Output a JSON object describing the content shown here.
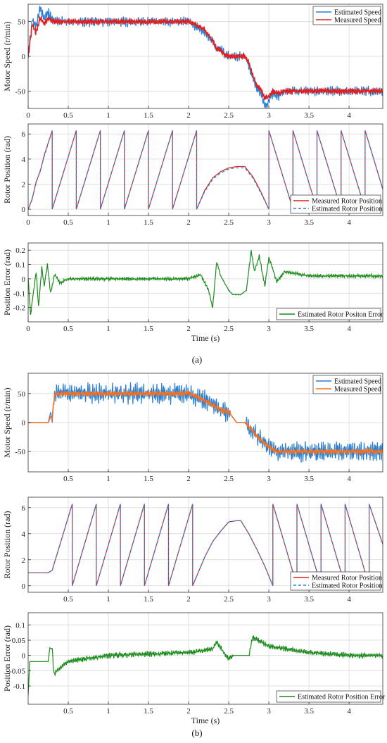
{
  "figure": {
    "panel_labels": [
      "(a)",
      "(b)"
    ]
  },
  "colors": {
    "estimated_speed": "#2a7fd4",
    "measured_speed_a": "#e02020",
    "measured_speed_b": "#f07020",
    "measured_position": "#e02020",
    "estimated_position": "#2a7fd4",
    "position_error": "#1a8a1a",
    "grid": "#d8d8d8"
  },
  "chart_data": [
    {
      "id": "a-speed",
      "type": "line",
      "panel": "(a)",
      "xlabel": "",
      "ylabel": "Motor Speed (r/min)",
      "xlim": [
        0,
        4.42
      ],
      "ylim": [
        -75,
        75
      ],
      "xticks": [
        0,
        0.5,
        1,
        1.5,
        2,
        2.5,
        3,
        3.5,
        4
      ],
      "xtick_labels": [
        "0",
        "0.5",
        "1",
        "1.5",
        "2",
        "2.5",
        "3",
        "3.5",
        "4"
      ],
      "yticks": [
        -50,
        0,
        50
      ],
      "ytick_labels": [
        "-50",
        "0",
        "50"
      ],
      "grid": true,
      "legend": "top-right",
      "series": [
        {
          "name": "Estimated Speed",
          "color": "#2a7fd4",
          "x": [
            0,
            0.05,
            0.1,
            0.15,
            0.2,
            0.25,
            0.3,
            0.4,
            0.5,
            0.75,
            1,
            1.5,
            2,
            2.1,
            2.2,
            2.3,
            2.35,
            2.4,
            2.45,
            2.5,
            2.6,
            2.7,
            2.75,
            2.8,
            2.85,
            2.9,
            2.95,
            3,
            3.05,
            3.1,
            3.2,
            3.5,
            4,
            4.42
          ],
          "y": [
            0,
            52,
            42,
            68,
            55,
            63,
            52,
            50,
            50,
            50,
            50,
            50,
            50,
            42,
            35,
            22,
            10,
            12,
            2,
            0,
            0,
            0,
            -12,
            -32,
            -45,
            -52,
            -72,
            -65,
            -52,
            -58,
            -50,
            -50,
            -50,
            -50
          ]
        },
        {
          "name": "Measured Speed",
          "color": "#e02020",
          "x": [
            0,
            0.05,
            0.1,
            0.15,
            0.2,
            0.25,
            0.3,
            0.4,
            0.5,
            0.75,
            1,
            1.5,
            2,
            2.1,
            2.2,
            2.3,
            2.35,
            2.4,
            2.45,
            2.5,
            2.6,
            2.7,
            2.75,
            2.8,
            2.85,
            2.9,
            2.95,
            3,
            3.05,
            3.1,
            3.2,
            3.5,
            4,
            4.42
          ],
          "y": [
            0,
            45,
            35,
            55,
            48,
            55,
            50,
            50,
            50,
            50,
            50,
            50,
            50,
            45,
            38,
            22,
            12,
            8,
            3,
            0,
            0,
            0,
            -8,
            -28,
            -42,
            -48,
            -60,
            -58,
            -50,
            -54,
            -50,
            -50,
            -50,
            -50
          ]
        }
      ]
    },
    {
      "id": "a-position",
      "type": "line",
      "panel": "(a)",
      "xlabel": "",
      "ylabel": "Rotor Position (rad)",
      "xlim": [
        0,
        4.42
      ],
      "ylim": [
        -0.5,
        6.8
      ],
      "xticks": [
        0,
        0.5,
        1,
        1.5,
        2,
        2.5,
        3,
        3.5,
        4
      ],
      "xtick_labels": [
        "0",
        "0.5",
        "1",
        "1.5",
        "2",
        "2.5",
        "3",
        "3.5",
        "4"
      ],
      "yticks": [
        0,
        2,
        4,
        6
      ],
      "ytick_labels": [
        "0",
        "2",
        "4",
        "6"
      ],
      "grid": true,
      "legend": "bottom-right",
      "series": [
        {
          "name": "Measured Rotor Position",
          "color": "#e02020",
          "dash": false,
          "x": [
            0,
            0.05,
            0.1,
            0.15,
            0.2,
            0.3,
            0.3,
            0.6,
            0.6,
            0.9,
            0.9,
            1.2,
            1.2,
            1.5,
            1.5,
            1.8,
            1.8,
            2.1,
            2.1,
            2.2,
            2.3,
            2.4,
            2.5,
            2.6,
            2.7,
            2.8,
            2.9,
            3,
            3,
            3.3,
            3.3,
            3.6,
            3.6,
            3.9,
            3.9,
            4.2,
            4.2,
            4.42
          ],
          "y": [
            0,
            0.8,
            2.2,
            3.0,
            4.3,
            6.28,
            0,
            6.28,
            0,
            6.28,
            0,
            6.28,
            0,
            6.28,
            0,
            6.28,
            0,
            6.28,
            0,
            1.5,
            2.5,
            3.0,
            3.3,
            3.4,
            3.4,
            2.6,
            1.4,
            0,
            6.28,
            0,
            6.28,
            0,
            6.28,
            0,
            6.28,
            0,
            6.28,
            1.6
          ]
        },
        {
          "name": "Estimated Rotor Position",
          "color": "#2a7fd4",
          "dash": true,
          "x": [
            0,
            0.05,
            0.1,
            0.15,
            0.2,
            0.3,
            0.3,
            0.6,
            0.6,
            0.9,
            0.9,
            1.2,
            1.2,
            1.5,
            1.5,
            1.8,
            1.8,
            2.1,
            2.1,
            2.2,
            2.3,
            2.4,
            2.5,
            2.6,
            2.7,
            2.8,
            2.9,
            3,
            3,
            3.3,
            3.3,
            3.6,
            3.6,
            3.9,
            3.9,
            4.2,
            4.2,
            4.42
          ],
          "y": [
            0,
            0.85,
            2.1,
            3.1,
            4.2,
            6.28,
            0,
            6.28,
            0,
            6.28,
            0,
            6.28,
            0,
            6.28,
            0,
            6.28,
            0,
            6.28,
            0,
            1.4,
            2.4,
            2.9,
            3.2,
            3.3,
            3.3,
            2.5,
            1.3,
            0,
            6.28,
            0,
            6.28,
            0,
            6.28,
            0,
            6.28,
            0,
            6.28,
            1.6
          ]
        }
      ]
    },
    {
      "id": "a-error",
      "type": "line",
      "panel": "(a)",
      "xlabel": "Time (s)",
      "ylabel": "Position Error (rad)",
      "xlim": [
        0,
        4.42
      ],
      "ylim": [
        -0.3,
        0.25
      ],
      "xticks": [
        0,
        0.5,
        1,
        1.5,
        2,
        2.5,
        3,
        3.5,
        4
      ],
      "xtick_labels": [
        "0",
        "0.5",
        "1",
        "1.5",
        "2",
        "2.5",
        "3",
        "3.5",
        "4"
      ],
      "yticks": [
        -0.2,
        -0.1,
        0,
        0.1,
        0.2
      ],
      "ytick_labels": [
        "-0.2",
        "-0.1",
        "0",
        "0.1",
        "0.2"
      ],
      "grid": true,
      "legend": "bottom-right",
      "series": [
        {
          "name": "Estimated Rotor Positon Error",
          "color": "#1a8a1a",
          "x": [
            0,
            0.03,
            0.06,
            0.1,
            0.13,
            0.17,
            0.2,
            0.24,
            0.28,
            0.33,
            0.4,
            0.5,
            1,
            1.5,
            2,
            2.15,
            2.25,
            2.3,
            2.35,
            2.4,
            2.5,
            2.55,
            2.65,
            2.72,
            2.78,
            2.82,
            2.88,
            2.95,
            3,
            3.1,
            3.2,
            3.5,
            4,
            4.42
          ],
          "y": [
            0,
            -0.25,
            -0.12,
            0.05,
            -0.2,
            0.08,
            -0.05,
            0.1,
            -0.1,
            0.03,
            -0.03,
            0,
            0,
            0,
            0,
            0.03,
            -0.08,
            -0.2,
            0.12,
            0.02,
            -0.08,
            -0.11,
            -0.11,
            -0.08,
            0.2,
            0.05,
            0.16,
            -0.05,
            0.15,
            -0.02,
            0.05,
            0.02,
            0.02,
            0.02
          ]
        }
      ]
    },
    {
      "id": "b-speed",
      "type": "line",
      "panel": "(b)",
      "xlabel": "",
      "ylabel": "Motor Speed (r/min)",
      "xlim": [
        0,
        4.42
      ],
      "ylim": [
        -85,
        85
      ],
      "xticks": [
        0.5,
        1,
        1.5,
        2,
        2.5,
        3,
        3.5,
        4
      ],
      "xtick_labels": [
        "0.5",
        "1",
        "1.5",
        "2",
        "2.5",
        "3",
        "3.5",
        "4"
      ],
      "yticks": [
        -50,
        0,
        50
      ],
      "ytick_labels": [
        "-50",
        "0",
        "50"
      ],
      "grid": true,
      "legend": "top-right",
      "series": [
        {
          "name": "Estimated Speed",
          "color": "#2a7fd4",
          "x": [
            0,
            0.25,
            0.28,
            0.3,
            0.33,
            0.4,
            1,
            1.5,
            2,
            2.1,
            2.2,
            2.3,
            2.4,
            2.5,
            2.6,
            2.7,
            2.8,
            2.9,
            3,
            3.1,
            3.2,
            3.5,
            4,
            4.42
          ],
          "y": [
            0,
            0,
            18,
            5,
            50,
            50,
            50,
            50,
            50,
            45,
            38,
            30,
            22,
            18,
            0,
            0,
            -15,
            -30,
            -42,
            -50,
            -50,
            -50,
            -50,
            -50
          ]
        },
        {
          "name": "Measured Speed",
          "color": "#f07020",
          "x": [
            0,
            0.25,
            0.28,
            0.3,
            0.33,
            0.4,
            1,
            1.5,
            2,
            2.1,
            2.2,
            2.3,
            2.4,
            2.5,
            2.6,
            2.7,
            2.8,
            2.9,
            3,
            3.1,
            3.2,
            3.5,
            4,
            4.42
          ],
          "y": [
            0,
            0,
            10,
            8,
            48,
            50,
            50,
            50,
            50,
            45,
            38,
            30,
            22,
            18,
            0,
            0,
            -15,
            -30,
            -42,
            -50,
            -50,
            -50,
            -50,
            -50
          ]
        }
      ]
    },
    {
      "id": "b-position",
      "type": "line",
      "panel": "(b)",
      "xlabel": "",
      "ylabel": "Rotor Position (rad)",
      "xlim": [
        0,
        4.42
      ],
      "ylim": [
        -0.5,
        6.8
      ],
      "xticks": [
        0.5,
        1,
        1.5,
        2,
        2.5,
        3,
        3.5,
        4
      ],
      "xtick_labels": [
        "0.5",
        "1",
        "1.5",
        "2",
        "2.5",
        "3",
        "3.5",
        "4"
      ],
      "yticks": [
        0,
        2,
        4,
        6
      ],
      "ytick_labels": [
        "0",
        "2",
        "4",
        "6"
      ],
      "grid": true,
      "legend": "bottom-right",
      "series": [
        {
          "name": "Measured Rotor Position",
          "color": "#e02020",
          "dash": false,
          "x": [
            0,
            0.25,
            0.3,
            0.55,
            0.55,
            0.85,
            0.85,
            1.15,
            1.15,
            1.45,
            1.45,
            1.75,
            1.75,
            2.05,
            2.05,
            2.2,
            2.3,
            2.4,
            2.5,
            2.6,
            2.65,
            2.75,
            2.85,
            2.95,
            3.05,
            3.05,
            3.35,
            3.35,
            3.65,
            3.65,
            3.95,
            3.95,
            4.25,
            4.25,
            4.42
          ],
          "y": [
            1,
            1,
            1.2,
            6.28,
            0,
            6.28,
            0,
            6.28,
            0,
            6.28,
            0,
            6.28,
            0,
            6.28,
            0,
            2.2,
            3.4,
            4.2,
            4.9,
            5.0,
            5.0,
            4.0,
            2.8,
            1.5,
            0,
            6.28,
            0,
            6.28,
            0,
            6.28,
            0,
            6.28,
            0,
            6.28,
            3.2
          ]
        },
        {
          "name": "Estimated Rotor Position",
          "color": "#2a7fd4",
          "dash": true,
          "x": [
            0,
            0.25,
            0.3,
            0.55,
            0.55,
            0.85,
            0.85,
            1.15,
            1.15,
            1.45,
            1.45,
            1.75,
            1.75,
            2.05,
            2.05,
            2.2,
            2.3,
            2.4,
            2.5,
            2.6,
            2.65,
            2.75,
            2.85,
            2.95,
            3.05,
            3.05,
            3.35,
            3.35,
            3.65,
            3.65,
            3.95,
            3.95,
            4.25,
            4.25,
            4.42
          ],
          "y": [
            1,
            1,
            1.2,
            6.28,
            0,
            6.28,
            0,
            6.28,
            0,
            6.28,
            0,
            6.28,
            0,
            6.28,
            0,
            2.2,
            3.4,
            4.2,
            4.9,
            5.0,
            5.0,
            4.0,
            2.8,
            1.5,
            0,
            6.28,
            0,
            6.28,
            0,
            6.28,
            0,
            6.28,
            0,
            6.28,
            3.2
          ]
        }
      ]
    },
    {
      "id": "b-error",
      "type": "line",
      "panel": "(b)",
      "xlabel": "Time (s)",
      "ylabel": "Position Error (rad)",
      "xlim": [
        0,
        4.42
      ],
      "ylim": [
        -0.16,
        0.14
      ],
      "xticks": [
        0.5,
        1,
        1.5,
        2,
        2.5,
        3,
        3.5,
        4
      ],
      "xtick_labels": [
        "0.5",
        "1",
        "1.5",
        "2",
        "2.5",
        "3",
        "3.5",
        "4"
      ],
      "yticks": [
        -0.1,
        -0.05,
        0,
        0.05,
        0.1
      ],
      "ytick_labels": [
        "-0.1",
        "-0.05",
        "0",
        "0.05",
        "0.1"
      ],
      "grid": true,
      "legend": "bottom-right",
      "series": [
        {
          "name": "Estimated Rotor Position Error",
          "color": "#1a8a1a",
          "x": [
            0,
            0.02,
            0.05,
            0.25,
            0.27,
            0.3,
            0.32,
            0.5,
            1,
            1.5,
            2,
            2.3,
            2.35,
            2.45,
            2.5,
            2.55,
            2.75,
            2.8,
            2.9,
            3,
            3.5,
            4,
            4.42
          ],
          "y": [
            -0.13,
            -0.02,
            -0.02,
            -0.02,
            0.025,
            0.02,
            -0.06,
            -0.02,
            0,
            0.005,
            0.01,
            0.02,
            0.045,
            0.005,
            -0.01,
            0,
            0,
            0.06,
            0.045,
            0.03,
            0.01,
            0.0,
            0.0
          ]
        }
      ]
    }
  ]
}
